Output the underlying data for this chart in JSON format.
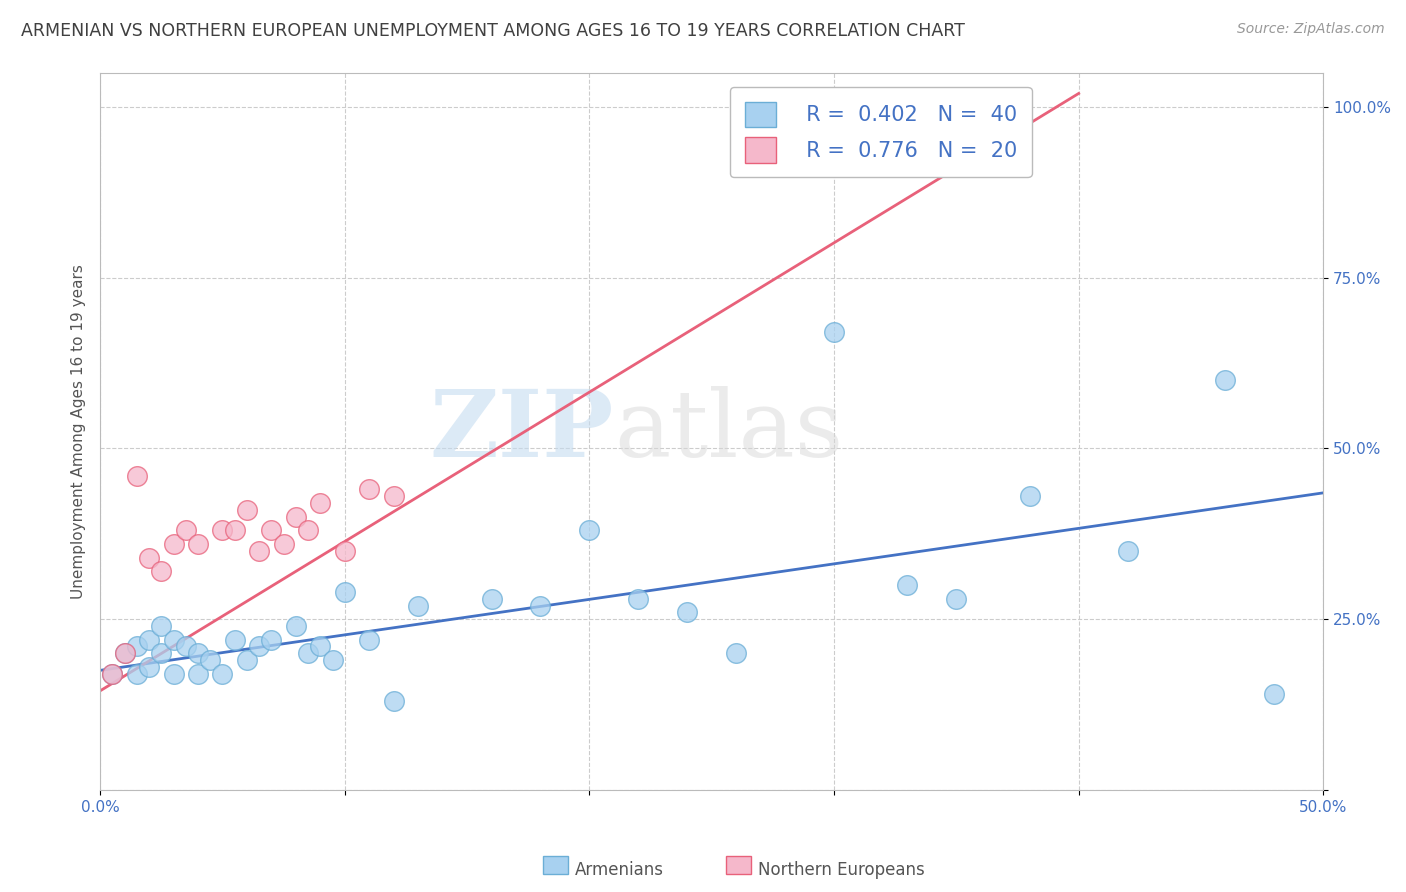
{
  "title": "ARMENIAN VS NORTHERN EUROPEAN UNEMPLOYMENT AMONG AGES 16 TO 19 YEARS CORRELATION CHART",
  "source": "Source: ZipAtlas.com",
  "ylabel": "Unemployment Among Ages 16 to 19 years",
  "xlabel": "",
  "xlim": [
    0.0,
    0.5
  ],
  "ylim": [
    0.0,
    1.05
  ],
  "xticks": [
    0.0,
    0.1,
    0.2,
    0.3,
    0.4,
    0.5
  ],
  "yticks": [
    0.0,
    0.25,
    0.5,
    0.75,
    1.0
  ],
  "xticklabels": [
    "0.0%",
    "",
    "",
    "",
    "",
    "50.0%"
  ],
  "yticklabels": [
    "",
    "25.0%",
    "50.0%",
    "75.0%",
    "100.0%"
  ],
  "watermark_zip": "ZIP",
  "watermark_atlas": "atlas",
  "legend_armenians_label": "Armenians",
  "legend_northern_label": "Northern Europeans",
  "R_armenians": 0.402,
  "N_armenians": 40,
  "R_northern": 0.776,
  "N_northern": 20,
  "armenian_color": "#A8D1F0",
  "northern_color": "#F5B8CB",
  "armenian_edge_color": "#6BAED6",
  "northern_edge_color": "#E8617A",
  "armenian_line_color": "#4472C4",
  "northern_line_color": "#E8617A",
  "grid_color": "#CCCCCC",
  "title_color": "#404040",
  "stat_value_color": "#4472C4",
  "background_color": "#FFFFFF",
  "armenians_x": [
    0.005,
    0.01,
    0.015,
    0.015,
    0.02,
    0.02,
    0.025,
    0.025,
    0.03,
    0.03,
    0.035,
    0.04,
    0.04,
    0.045,
    0.05,
    0.055,
    0.06,
    0.065,
    0.07,
    0.08,
    0.085,
    0.09,
    0.095,
    0.1,
    0.11,
    0.12,
    0.13,
    0.16,
    0.18,
    0.2,
    0.22,
    0.24,
    0.26,
    0.3,
    0.33,
    0.35,
    0.38,
    0.42,
    0.46,
    0.48
  ],
  "armenians_y": [
    0.17,
    0.2,
    0.21,
    0.17,
    0.22,
    0.18,
    0.2,
    0.24,
    0.22,
    0.17,
    0.21,
    0.2,
    0.17,
    0.19,
    0.17,
    0.22,
    0.19,
    0.21,
    0.22,
    0.24,
    0.2,
    0.21,
    0.19,
    0.29,
    0.22,
    0.13,
    0.27,
    0.28,
    0.27,
    0.38,
    0.28,
    0.26,
    0.2,
    0.67,
    0.3,
    0.28,
    0.43,
    0.35,
    0.6,
    0.14
  ],
  "northern_x": [
    0.005,
    0.01,
    0.015,
    0.02,
    0.025,
    0.03,
    0.035,
    0.04,
    0.05,
    0.055,
    0.06,
    0.065,
    0.07,
    0.075,
    0.08,
    0.085,
    0.09,
    0.1,
    0.11,
    0.12
  ],
  "northern_y": [
    0.17,
    0.2,
    0.46,
    0.34,
    0.32,
    0.36,
    0.38,
    0.36,
    0.38,
    0.38,
    0.41,
    0.35,
    0.38,
    0.36,
    0.4,
    0.38,
    0.42,
    0.35,
    0.44,
    0.43
  ],
  "armenian_trend_x": [
    0.0,
    0.5
  ],
  "armenian_trend_y": [
    0.175,
    0.435
  ],
  "northern_trend_x": [
    0.0,
    0.4
  ],
  "northern_trend_y": [
    0.145,
    1.02
  ]
}
